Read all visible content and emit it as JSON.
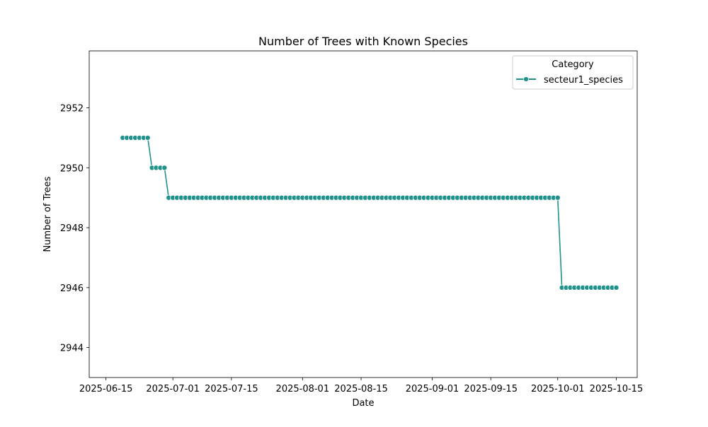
{
  "chart_data": {
    "type": "line",
    "title": "Number of Trees with Known Species",
    "xlabel": "Date",
    "ylabel": "Number of Trees",
    "x_ticks": [
      "2025-06-15",
      "2025-07-01",
      "2025-07-15",
      "2025-08-01",
      "2025-08-15",
      "2025-09-01",
      "2025-09-15",
      "2025-10-01",
      "2025-10-15"
    ],
    "y_ticks": [
      2944,
      2946,
      2948,
      2950,
      2952
    ],
    "xlim": [
      "2025-06-11",
      "2025-10-20"
    ],
    "ylim": [
      2943.0,
      2953.9
    ],
    "grid": false,
    "legend": {
      "title": "Category",
      "position": "top-right"
    },
    "series": [
      {
        "name": "secteur1_species",
        "color": "#21918c",
        "marker": "circle",
        "segments": [
          {
            "from": "2025-06-19",
            "to": "2025-06-25",
            "value": 2951
          },
          {
            "from": "2025-06-26",
            "to": "2025-06-29",
            "value": 2950
          },
          {
            "from": "2025-06-30",
            "to": "2025-10-01",
            "value": 2949
          },
          {
            "from": "2025-10-02",
            "to": "2025-10-15",
            "value": 2946
          }
        ]
      }
    ]
  }
}
